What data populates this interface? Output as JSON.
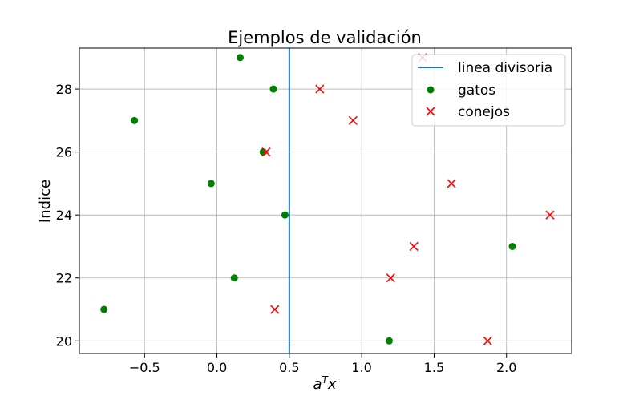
{
  "chart_data": {
    "type": "scatter",
    "title": "Ejemplos de validación",
    "xlabel": "a^T x",
    "ylabel": "Indice",
    "xlim": [
      -0.95,
      2.45
    ],
    "ylim": [
      19.6,
      29.3
    ],
    "xticks": [
      -0.5,
      0.0,
      0.5,
      1.0,
      1.5,
      2.0
    ],
    "xtick_labels": [
      "−0.5",
      "0.0",
      "0.5",
      "1.0",
      "1.5",
      "2.0"
    ],
    "yticks": [
      20,
      22,
      24,
      26,
      28
    ],
    "ytick_labels": [
      "20",
      "22",
      "24",
      "26",
      "28"
    ],
    "grid": true,
    "legend_position": "top-right",
    "divider": {
      "name": "linea divisoria",
      "x": 0.5,
      "color": "#1f77b4"
    },
    "series": [
      {
        "name": "gatos",
        "marker": "circle",
        "color": "#008000",
        "points": [
          {
            "x": 0.16,
            "y": 29
          },
          {
            "x": 0.39,
            "y": 28
          },
          {
            "x": -0.57,
            "y": 27
          },
          {
            "x": 0.32,
            "y": 26
          },
          {
            "x": -0.04,
            "y": 25
          },
          {
            "x": 0.47,
            "y": 24
          },
          {
            "x": 2.04,
            "y": 23
          },
          {
            "x": 0.12,
            "y": 22
          },
          {
            "x": -0.78,
            "y": 21
          },
          {
            "x": 1.19,
            "y": 20
          }
        ]
      },
      {
        "name": "conejos",
        "marker": "x",
        "color": "#ff0000",
        "points": [
          {
            "x": 1.42,
            "y": 29
          },
          {
            "x": 0.71,
            "y": 28
          },
          {
            "x": 0.94,
            "y": 27
          },
          {
            "x": 0.34,
            "y": 26
          },
          {
            "x": 1.62,
            "y": 25
          },
          {
            "x": 2.3,
            "y": 24
          },
          {
            "x": 1.36,
            "y": 23
          },
          {
            "x": 1.2,
            "y": 22
          },
          {
            "x": 0.4,
            "y": 21
          },
          {
            "x": 1.87,
            "y": 20
          }
        ]
      }
    ]
  }
}
